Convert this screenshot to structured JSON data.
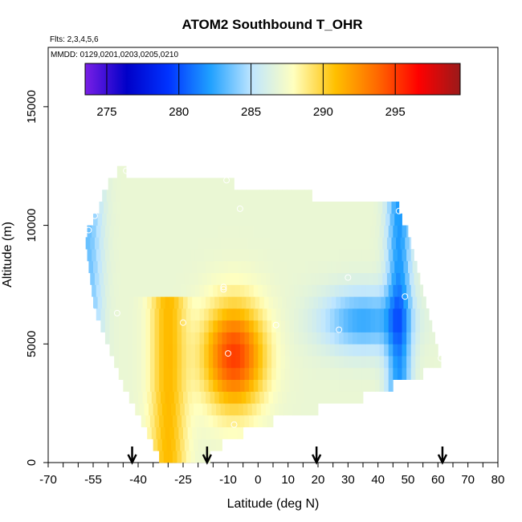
{
  "chart_data": {
    "type": "heatmap",
    "title": "ATOM2 Southbound T_OHR",
    "flights_note": "Flts: 2,3,4,5,6",
    "dates_note": "MMDD: 0129,0201,0203,0205,0210",
    "xlabel": "Latitude (deg N)",
    "ylabel": "Altitude (m)",
    "xlim": [
      -70,
      80
    ],
    "ylim": [
      0,
      17500
    ],
    "x_ticks": [
      -70,
      -55,
      -40,
      -25,
      -10,
      0,
      10,
      20,
      30,
      40,
      50,
      60,
      70,
      80
    ],
    "x_tick_labels": [
      "-70",
      "-55",
      "-40",
      "-25",
      "-10",
      "0",
      "10",
      "20",
      "30",
      "40",
      "50",
      "60",
      "70",
      "80"
    ],
    "y_ticks": [
      0,
      5000,
      10000,
      15000
    ],
    "y_tick_labels": [
      "0",
      "5000",
      "10000",
      "15000"
    ],
    "colorbar": {
      "range": [
        273.5,
        299.5
      ],
      "ticks": [
        275,
        280,
        285,
        290,
        295
      ],
      "tick_labels": [
        "275",
        "280",
        "285",
        "290",
        "295"
      ],
      "colors": [
        "#7a1fe6",
        "#0000c8",
        "#0033ff",
        "#1fa0ff",
        "#bfe6ff",
        "#ffffbf",
        "#ffc000",
        "#ff6a00",
        "#ff0000",
        "#9a1a1a"
      ]
    },
    "cell_height_m": 500,
    "rows": [
      {
        "alt": 500,
        "lat_min": -33,
        "lat_max": -16
      },
      {
        "alt": 1000,
        "lat_min": -35,
        "lat_max": -12
      },
      {
        "alt": 1500,
        "lat_min": -37,
        "lat_max": -5
      },
      {
        "alt": 2000,
        "lat_min": -39,
        "lat_max": 5
      },
      {
        "alt": 2500,
        "lat_min": -41,
        "lat_max": 20
      },
      {
        "alt": 3000,
        "lat_min": -43,
        "lat_max": 35
      },
      {
        "alt": 3500,
        "lat_min": -45,
        "lat_max": 45
      },
      {
        "alt": 4000,
        "lat_min": -46.5,
        "lat_max": 55
      },
      {
        "alt": 4500,
        "lat_min": -48,
        "lat_max": 61
      },
      {
        "alt": 5000,
        "lat_min": -49.5,
        "lat_max": 60
      },
      {
        "alt": 5500,
        "lat_min": -51,
        "lat_max": 59
      },
      {
        "alt": 6000,
        "lat_min": -52.5,
        "lat_max": 58
      },
      {
        "alt": 6500,
        "lat_min": -54,
        "lat_max": 57
      },
      {
        "alt": 7000,
        "lat_min": -55,
        "lat_max": 56
      },
      {
        "alt": 7500,
        "lat_min": -55.5,
        "lat_max": 55
      },
      {
        "alt": 8000,
        "lat_min": -56,
        "lat_max": 54
      },
      {
        "alt": 8500,
        "lat_min": -56.5,
        "lat_max": 53
      },
      {
        "alt": 9000,
        "lat_min": -57,
        "lat_max": 52
      },
      {
        "alt": 9500,
        "lat_min": -57.5,
        "lat_max": 51
      },
      {
        "alt": 10000,
        "lat_min": -57,
        "lat_max": 50
      },
      {
        "alt": 10500,
        "lat_min": -55,
        "lat_max": 48
      },
      {
        "alt": 11000,
        "lat_min": -53,
        "lat_max": 47
      },
      {
        "alt": 11500,
        "lat_min": -52,
        "lat_max": 18
      },
      {
        "alt": 12000,
        "lat_min": -50,
        "lat_max": -8
      },
      {
        "alt": 12500,
        "lat_min": -47,
        "lat_max": -44
      }
    ],
    "field_model": "T = 287 + 8*exp(-((lat+8)/10)^2 - ((alt-4500)/2200)^2) + 4*exp(-((lat+30)/6)^2)*(alt<7000) - 4.5*exp(-((lat-35)/14)^2 - ((alt-6000)/1300)^2) - 5*exp(-((lat-47)/4)^2) - 3.5*exp(-((lat+57)/5)^2)",
    "sample_points": [
      {
        "lat": -56.5,
        "alt": 9800
      },
      {
        "lat": -54.5,
        "alt": 10400
      },
      {
        "lat": -55.5,
        "alt": 6400
      },
      {
        "lat": -47,
        "alt": 6300
      },
      {
        "lat": -44,
        "alt": 12300
      },
      {
        "lat": -25,
        "alt": 5900
      },
      {
        "lat": -11.5,
        "alt": 7400
      },
      {
        "lat": -11.5,
        "alt": 7300
      },
      {
        "lat": -10.5,
        "alt": 11900
      },
      {
        "lat": -6,
        "alt": 10700
      },
      {
        "lat": -10,
        "alt": 4600
      },
      {
        "lat": -8,
        "alt": 1600
      },
      {
        "lat": 6,
        "alt": 5800
      },
      {
        "lat": 27,
        "alt": 5600
      },
      {
        "lat": 30,
        "alt": 7800
      },
      {
        "lat": 47,
        "alt": 10600
      },
      {
        "lat": 49,
        "alt": 7000
      },
      {
        "lat": 61,
        "alt": 4400
      }
    ],
    "arrows_lat": [
      -42,
      -17,
      19.5,
      61.5
    ]
  }
}
